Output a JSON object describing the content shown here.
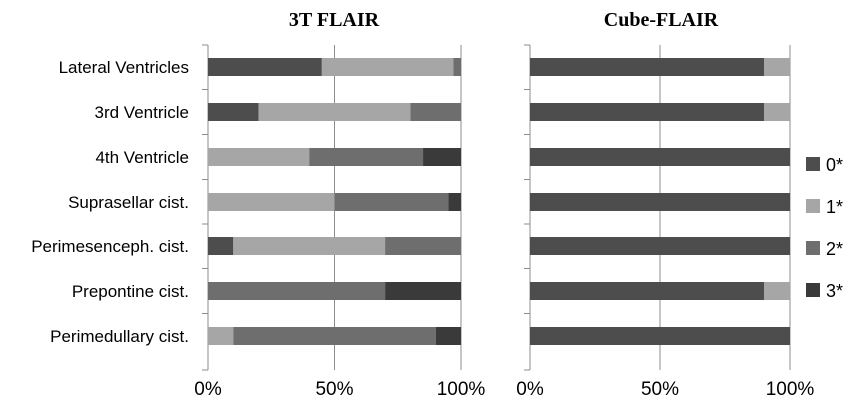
{
  "chart_data": [
    {
      "type": "bar",
      "orientation": "horizontal",
      "stacked": "percent",
      "title": "3T FLAIR",
      "categories": [
        "Lateral Ventricles",
        "3rd Ventricle",
        "4th Ventricle",
        "Suprasellar cist.",
        "Perimesenceph. cist.",
        "Prepontine cist.",
        "Perimedullary cist."
      ],
      "series": [
        {
          "name": "0*",
          "color": "#4d4d4d",
          "values": [
            45,
            20,
            0,
            0,
            10,
            0,
            0
          ]
        },
        {
          "name": "1*",
          "color": "#a6a6a6",
          "values": [
            52,
            60,
            40,
            50,
            60,
            0,
            10
          ]
        },
        {
          "name": "2*",
          "color": "#6e6e6e",
          "values": [
            3,
            20,
            45,
            45,
            30,
            70,
            80
          ]
        },
        {
          "name": "3*",
          "color": "#3a3a3a",
          "values": [
            0,
            0,
            15,
            5,
            0,
            30,
            10
          ]
        }
      ],
      "xlim": [
        0,
        100
      ],
      "x_ticks": [
        "0%",
        "50%",
        "100%"
      ],
      "grid": true
    },
    {
      "type": "bar",
      "orientation": "horizontal",
      "stacked": "percent",
      "title": "Cube-FLAIR",
      "categories": [
        "Lateral Ventricles",
        "3rd Ventricle",
        "4th Ventricle",
        "Suprasellar cist.",
        "Perimesenceph. cist.",
        "Prepontine cist.",
        "Perimedullary cist."
      ],
      "series": [
        {
          "name": "0*",
          "color": "#4d4d4d",
          "values": [
            90,
            90,
            100,
            100,
            100,
            90,
            100
          ]
        },
        {
          "name": "1*",
          "color": "#a6a6a6",
          "values": [
            10,
            10,
            0,
            0,
            0,
            10,
            0
          ]
        },
        {
          "name": "2*",
          "color": "#6e6e6e",
          "values": [
            0,
            0,
            0,
            0,
            0,
            0,
            0
          ]
        },
        {
          "name": "3*",
          "color": "#3a3a3a",
          "values": [
            0,
            0,
            0,
            0,
            0,
            0,
            0
          ]
        }
      ],
      "xlim": [
        0,
        100
      ],
      "x_ticks": [
        "0%",
        "50%",
        "100%"
      ],
      "grid": true,
      "legend_position": "right"
    }
  ]
}
